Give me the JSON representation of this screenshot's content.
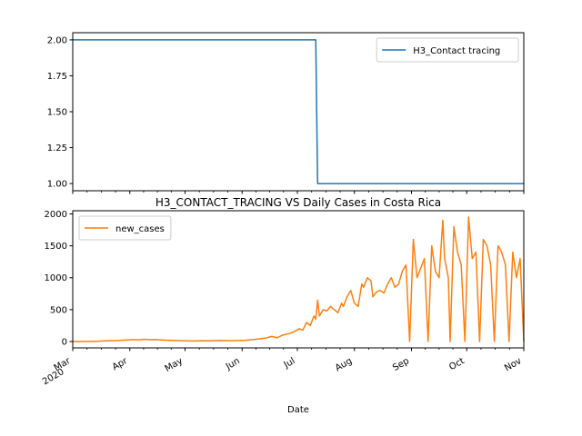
{
  "chart_data": [
    {
      "type": "line",
      "title": "",
      "xlabel": "",
      "ylabel": "",
      "ylim": [
        0.95,
        2.05
      ],
      "y_ticks": [
        "1.00",
        "1.25",
        "1.50",
        "1.75",
        "2.00"
      ],
      "y_tick_values": [
        1.0,
        1.25,
        1.5,
        1.75,
        2.0
      ],
      "x_range": [
        "2020-03-01",
        "2020-11-01"
      ],
      "grid": false,
      "legend": "top-right",
      "series": [
        {
          "name": "H3_Contact tracing",
          "color": "#1f77b4",
          "points": [
            [
              "2020-03-01",
              2
            ],
            [
              "2020-07-11",
              2
            ],
            [
              "2020-07-12",
              1
            ],
            [
              "2020-11-01",
              1
            ]
          ]
        }
      ]
    },
    {
      "type": "line",
      "title": "H3_CONTACT_TRACING VS Daily Cases in Costa Rica",
      "xlabel": "Date",
      "ylabel": "",
      "ylim": [
        -100,
        2050
      ],
      "y_ticks": [
        "0",
        "500",
        "1000",
        "1500",
        "2000"
      ],
      "y_tick_values": [
        0,
        500,
        1000,
        1500,
        2000
      ],
      "x_range": [
        "2020-03-01",
        "2020-11-01"
      ],
      "x_ticks": [
        {
          "date": "2020-03-01",
          "label": "Mar",
          "sublabel": "2020"
        },
        {
          "date": "2020-04-01",
          "label": "Apr",
          "sublabel": ""
        },
        {
          "date": "2020-05-01",
          "label": "May",
          "sublabel": ""
        },
        {
          "date": "2020-06-01",
          "label": "Jun",
          "sublabel": ""
        },
        {
          "date": "2020-07-01",
          "label": "Jul",
          "sublabel": ""
        },
        {
          "date": "2020-08-01",
          "label": "Aug",
          "sublabel": ""
        },
        {
          "date": "2020-09-01",
          "label": "Sep",
          "sublabel": ""
        },
        {
          "date": "2020-10-01",
          "label": "Oct",
          "sublabel": ""
        },
        {
          "date": "2020-11-01",
          "label": "Nov",
          "sublabel": ""
        }
      ],
      "grid": false,
      "legend": "top-left",
      "series": [
        {
          "name": "new_cases",
          "color": "#ff7f0e",
          "points": [
            [
              "2020-03-01",
              0
            ],
            [
              "2020-03-10",
              2
            ],
            [
              "2020-03-15",
              5
            ],
            [
              "2020-03-20",
              12
            ],
            [
              "2020-03-25",
              15
            ],
            [
              "2020-03-30",
              22
            ],
            [
              "2020-04-03",
              30
            ],
            [
              "2020-04-06",
              25
            ],
            [
              "2020-04-09",
              35
            ],
            [
              "2020-04-12",
              28
            ],
            [
              "2020-04-15",
              30
            ],
            [
              "2020-04-18",
              25
            ],
            [
              "2020-04-22",
              20
            ],
            [
              "2020-04-26",
              15
            ],
            [
              "2020-05-01",
              10
            ],
            [
              "2020-05-06",
              8
            ],
            [
              "2020-05-10",
              12
            ],
            [
              "2020-05-15",
              10
            ],
            [
              "2020-05-20",
              15
            ],
            [
              "2020-05-25",
              12
            ],
            [
              "2020-05-30",
              15
            ],
            [
              "2020-06-03",
              20
            ],
            [
              "2020-06-07",
              30
            ],
            [
              "2020-06-10",
              40
            ],
            [
              "2020-06-14",
              55
            ],
            [
              "2020-06-17",
              80
            ],
            [
              "2020-06-20",
              60
            ],
            [
              "2020-06-23",
              100
            ],
            [
              "2020-06-26",
              120
            ],
            [
              "2020-06-29",
              150
            ],
            [
              "2020-07-02",
              200
            ],
            [
              "2020-07-04",
              180
            ],
            [
              "2020-07-06",
              300
            ],
            [
              "2020-07-08",
              250
            ],
            [
              "2020-07-10",
              400
            ],
            [
              "2020-07-11",
              350
            ],
            [
              "2020-07-12",
              650
            ],
            [
              "2020-07-13",
              400
            ],
            [
              "2020-07-15",
              500
            ],
            [
              "2020-07-17",
              480
            ],
            [
              "2020-07-19",
              550
            ],
            [
              "2020-07-21",
              500
            ],
            [
              "2020-07-23",
              450
            ],
            [
              "2020-07-25",
              600
            ],
            [
              "2020-07-26",
              550
            ],
            [
              "2020-07-28",
              700
            ],
            [
              "2020-07-30",
              800
            ],
            [
              "2020-08-01",
              600
            ],
            [
              "2020-08-03",
              550
            ],
            [
              "2020-08-05",
              900
            ],
            [
              "2020-08-06",
              850
            ],
            [
              "2020-08-08",
              1000
            ],
            [
              "2020-08-10",
              950
            ],
            [
              "2020-08-11",
              700
            ],
            [
              "2020-08-13",
              780
            ],
            [
              "2020-08-15",
              800
            ],
            [
              "2020-08-17",
              760
            ],
            [
              "2020-08-19",
              900
            ],
            [
              "2020-08-21",
              1000
            ],
            [
              "2020-08-23",
              850
            ],
            [
              "2020-08-25",
              900
            ],
            [
              "2020-08-27",
              1100
            ],
            [
              "2020-08-29",
              1200
            ],
            [
              "2020-08-31",
              0
            ],
            [
              "2020-09-02",
              1600
            ],
            [
              "2020-09-04",
              1000
            ],
            [
              "2020-09-06",
              1150
            ],
            [
              "2020-09-08",
              1300
            ],
            [
              "2020-09-10",
              0
            ],
            [
              "2020-09-12",
              1500
            ],
            [
              "2020-09-14",
              1100
            ],
            [
              "2020-09-16",
              1000
            ],
            [
              "2020-09-18",
              1900
            ],
            [
              "2020-09-19",
              1300
            ],
            [
              "2020-09-21",
              1000
            ],
            [
              "2020-09-22",
              0
            ],
            [
              "2020-09-24",
              1800
            ],
            [
              "2020-09-26",
              1400
            ],
            [
              "2020-09-28",
              1200
            ],
            [
              "2020-09-30",
              0
            ],
            [
              "2020-10-02",
              1950
            ],
            [
              "2020-10-04",
              1300
            ],
            [
              "2020-10-06",
              1400
            ],
            [
              "2020-10-08",
              0
            ],
            [
              "2020-10-10",
              1600
            ],
            [
              "2020-10-12",
              1500
            ],
            [
              "2020-10-14",
              1200
            ],
            [
              "2020-10-16",
              0
            ],
            [
              "2020-10-18",
              1500
            ],
            [
              "2020-10-20",
              1400
            ],
            [
              "2020-10-22",
              1200
            ],
            [
              "2020-10-24",
              0
            ],
            [
              "2020-10-26",
              1400
            ],
            [
              "2020-10-28",
              1000
            ],
            [
              "2020-10-30",
              1300
            ],
            [
              "2020-11-01",
              0
            ]
          ]
        }
      ]
    }
  ]
}
